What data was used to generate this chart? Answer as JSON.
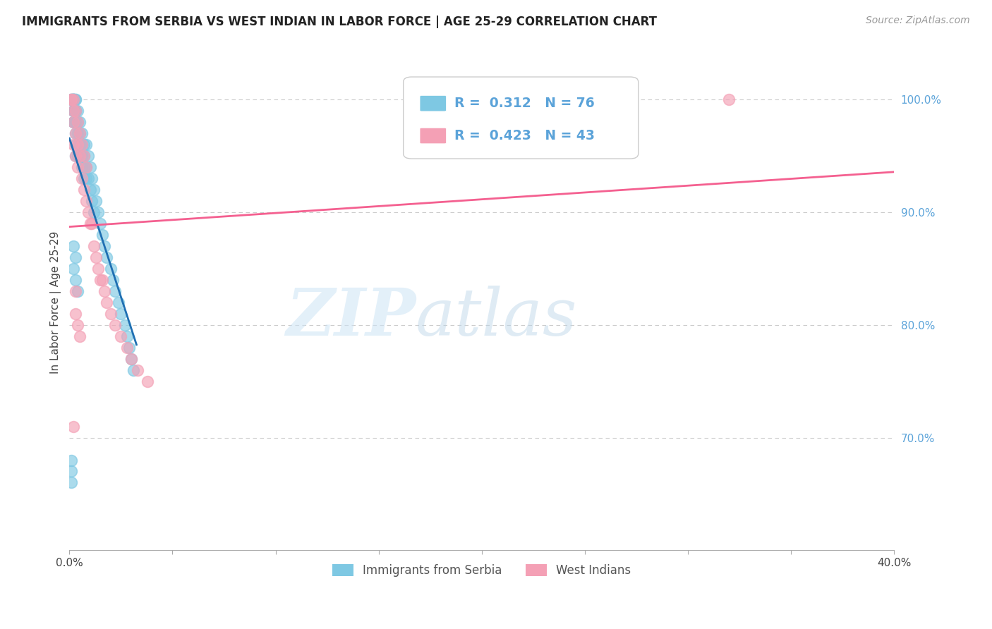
{
  "title": "IMMIGRANTS FROM SERBIA VS WEST INDIAN IN LABOR FORCE | AGE 25-29 CORRELATION CHART",
  "source": "Source: ZipAtlas.com",
  "ylabel": "In Labor Force | Age 25-29",
  "legend_serbia": "Immigrants from Serbia",
  "legend_west": "West Indians",
  "R_serbia": 0.312,
  "N_serbia": 76,
  "R_west": 0.423,
  "N_west": 43,
  "color_serbia": "#7ec8e3",
  "color_west": "#f4a0b5",
  "color_serbia_line": "#1f6fb2",
  "color_west_line": "#f46090",
  "xlim": [
    0.0,
    0.4
  ],
  "ylim": [
    0.6,
    1.04
  ],
  "serbia_x": [
    0.001,
    0.001,
    0.001,
    0.002,
    0.002,
    0.002,
    0.002,
    0.002,
    0.002,
    0.002,
    0.002,
    0.002,
    0.002,
    0.002,
    0.003,
    0.003,
    0.003,
    0.003,
    0.003,
    0.003,
    0.003,
    0.003,
    0.003,
    0.004,
    0.004,
    0.004,
    0.004,
    0.004,
    0.005,
    0.005,
    0.005,
    0.005,
    0.005,
    0.006,
    0.006,
    0.006,
    0.006,
    0.007,
    0.007,
    0.007,
    0.007,
    0.008,
    0.008,
    0.008,
    0.009,
    0.009,
    0.01,
    0.01,
    0.011,
    0.011,
    0.012,
    0.012,
    0.013,
    0.014,
    0.015,
    0.016,
    0.017,
    0.018,
    0.02,
    0.021,
    0.022,
    0.024,
    0.025,
    0.027,
    0.028,
    0.029,
    0.03,
    0.031,
    0.002,
    0.002,
    0.001,
    0.001,
    0.001,
    0.003,
    0.003,
    0.004
  ],
  "serbia_y": [
    1.0,
    1.0,
    1.0,
    1.0,
    1.0,
    1.0,
    1.0,
    1.0,
    1.0,
    0.99,
    0.99,
    0.99,
    0.98,
    0.98,
    1.0,
    1.0,
    0.99,
    0.99,
    0.99,
    0.98,
    0.97,
    0.96,
    0.95,
    0.99,
    0.98,
    0.97,
    0.96,
    0.95,
    0.98,
    0.97,
    0.96,
    0.96,
    0.95,
    0.97,
    0.96,
    0.95,
    0.94,
    0.96,
    0.95,
    0.94,
    0.93,
    0.96,
    0.94,
    0.93,
    0.95,
    0.93,
    0.94,
    0.92,
    0.93,
    0.91,
    0.92,
    0.9,
    0.91,
    0.9,
    0.89,
    0.88,
    0.87,
    0.86,
    0.85,
    0.84,
    0.83,
    0.82,
    0.81,
    0.8,
    0.79,
    0.78,
    0.77,
    0.76,
    0.87,
    0.85,
    0.68,
    0.67,
    0.66,
    0.86,
    0.84,
    0.83
  ],
  "west_x": [
    0.001,
    0.001,
    0.002,
    0.002,
    0.002,
    0.002,
    0.003,
    0.003,
    0.003,
    0.004,
    0.004,
    0.004,
    0.005,
    0.005,
    0.006,
    0.006,
    0.007,
    0.007,
    0.008,
    0.008,
    0.009,
    0.01,
    0.011,
    0.012,
    0.013,
    0.014,
    0.015,
    0.016,
    0.017,
    0.018,
    0.02,
    0.022,
    0.025,
    0.028,
    0.03,
    0.033,
    0.038,
    0.002,
    0.003,
    0.003,
    0.004,
    0.005,
    0.32
  ],
  "west_y": [
    1.0,
    1.0,
    1.0,
    0.99,
    0.98,
    0.96,
    0.99,
    0.97,
    0.95,
    0.98,
    0.96,
    0.94,
    0.97,
    0.95,
    0.96,
    0.93,
    0.95,
    0.92,
    0.94,
    0.91,
    0.9,
    0.89,
    0.89,
    0.87,
    0.86,
    0.85,
    0.84,
    0.84,
    0.83,
    0.82,
    0.81,
    0.8,
    0.79,
    0.78,
    0.77,
    0.76,
    0.75,
    0.71,
    0.83,
    0.81,
    0.8,
    0.79,
    1.0
  ],
  "watermark_zip": "ZIP",
  "watermark_atlas": "atlas",
  "grid_color": "#cccccc",
  "background_color": "#ffffff",
  "right_tick_color": "#5ba3d9",
  "title_fontsize": 12,
  "source_fontsize": 10
}
